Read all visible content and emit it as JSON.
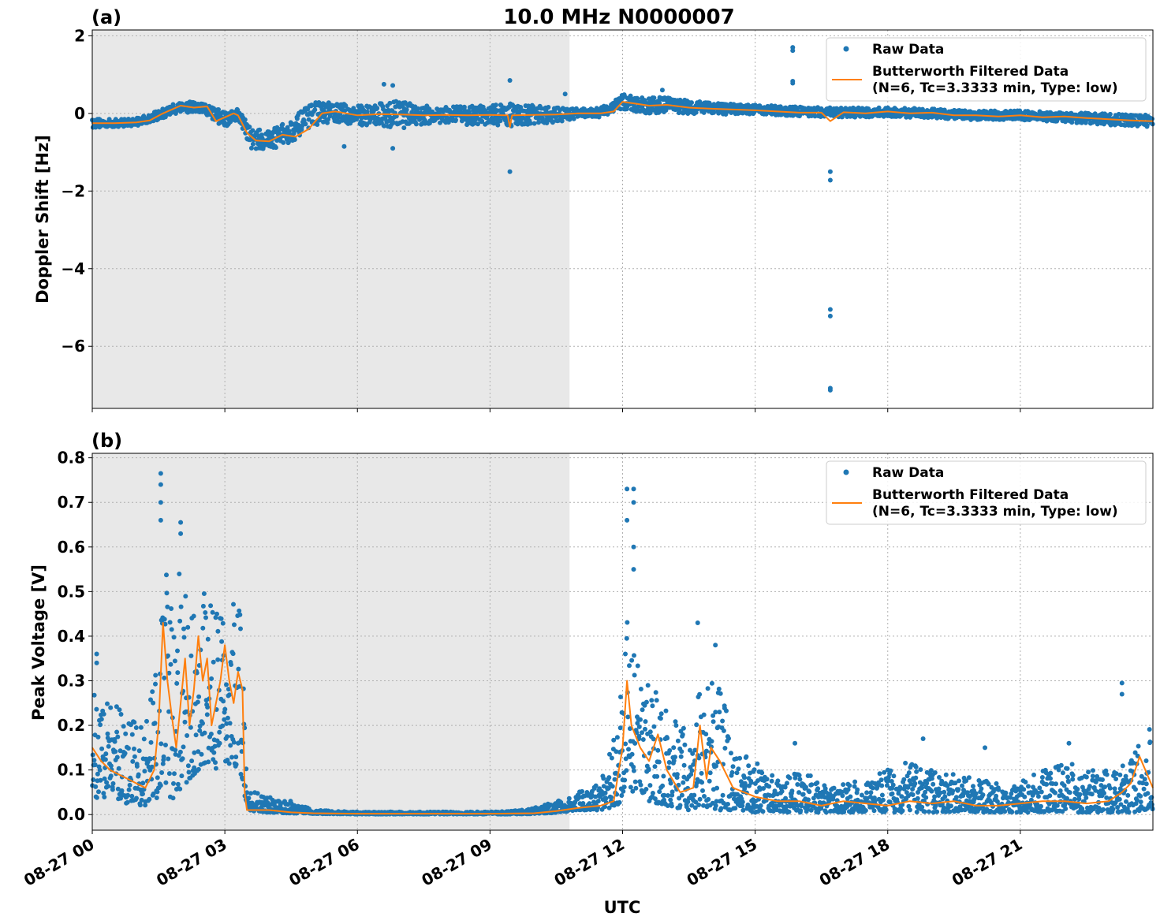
{
  "figure": {
    "title": "10.0 MHz N0000007",
    "xlabel": "UTC"
  },
  "colors": {
    "raw": "#1f77b4",
    "filtered": "#ff7f0e",
    "shade": "#e8e8e8"
  },
  "legend": {
    "raw_label": "Raw Data",
    "filtered_label_line1": "Butterworth Filtered Data",
    "filtered_label_line2": "(N=6, Tc=3.3333 min, Type: low)"
  },
  "chart_data": [
    {
      "type": "scatter",
      "panel_label": "(a)",
      "ylabel": "Doppler Shift [Hz]",
      "x_unit": "hours UTC on 08-27",
      "xlim": [
        0,
        24
      ],
      "ylim": [
        -7.6,
        2.15
      ],
      "yticks": [
        2,
        0,
        -2,
        -4,
        -6
      ],
      "ytick_labels": [
        "2",
        "0",
        "−2",
        "−4",
        "−6"
      ],
      "xticks": [
        0,
        3,
        6,
        9,
        12,
        15,
        18,
        21
      ],
      "xtick_labels": [
        "08-27 00",
        "08-27 03",
        "08-27 06",
        "08-27 09",
        "08-27 12",
        "08-27 15",
        "08-27 18",
        "08-27 21"
      ],
      "grid": true,
      "legend_position": "top-right",
      "shaded_interval": [
        0,
        10.8
      ],
      "series": [
        {
          "name": "Raw Data",
          "style": "dots",
          "band": {
            "x": [
              0,
              0.5,
              1.0,
              1.5,
              2.0,
              2.5,
              3.0,
              3.3,
              3.6,
              4.0,
              4.5,
              5.0,
              5.5,
              6.0,
              6.5,
              7.0,
              7.5,
              8.0,
              8.5,
              9.0,
              9.5,
              10.0,
              10.5,
              11.0,
              11.5,
              12.0,
              12.5,
              13.0,
              14.0,
              15.0,
              16.0,
              17.0,
              18.0,
              19.0,
              20.0,
              21.0,
              22.0,
              23.0,
              24.0
            ],
            "y": [
              -0.25,
              -0.25,
              -0.22,
              -0.05,
              0.18,
              0.12,
              -0.15,
              0.0,
              -0.65,
              -0.7,
              -0.45,
              0.0,
              0.02,
              -0.05,
              -0.02,
              -0.03,
              -0.05,
              -0.04,
              -0.05,
              -0.04,
              -0.05,
              -0.04,
              -0.03,
              0.0,
              0.02,
              0.3,
              0.2,
              0.22,
              0.12,
              0.1,
              0.05,
              0.02,
              0.03,
              0.0,
              -0.05,
              -0.05,
              -0.1,
              -0.15,
              -0.2
            ],
            "spread": [
              0.12,
              0.1,
              0.1,
              0.12,
              0.15,
              0.15,
              0.2,
              0.15,
              0.25,
              0.25,
              0.3,
              0.3,
              0.25,
              0.25,
              0.3,
              0.35,
              0.25,
              0.2,
              0.25,
              0.25,
              0.3,
              0.25,
              0.2,
              0.12,
              0.12,
              0.2,
              0.2,
              0.2,
              0.15,
              0.12,
              0.12,
              0.12,
              0.12,
              0.12,
              0.12,
              0.12,
              0.12,
              0.15,
              0.15
            ]
          },
          "outliers": [
            [
              15.85,
              1.7
            ],
            [
              15.85,
              1.62
            ],
            [
              15.85,
              0.83
            ],
            [
              15.85,
              0.78
            ],
            [
              16.7,
              -1.5
            ],
            [
              16.7,
              -1.72
            ],
            [
              16.7,
              -5.05
            ],
            [
              16.7,
              -5.22
            ],
            [
              16.7,
              -7.08
            ],
            [
              16.7,
              -7.13
            ],
            [
              9.45,
              -1.5
            ],
            [
              9.45,
              0.85
            ],
            [
              6.6,
              0.75
            ],
            [
              6.8,
              0.72
            ],
            [
              5.7,
              -0.85
            ],
            [
              6.8,
              -0.9
            ],
            [
              10.7,
              0.5
            ],
            [
              12.9,
              0.6
            ]
          ]
        },
        {
          "name": "Butterworth Filtered Data (N=6, Tc=3.3333 min, Type: low)",
          "style": "line",
          "x": [
            0,
            0.5,
            1.0,
            1.3,
            1.6,
            2.0,
            2.3,
            2.6,
            2.8,
            3.0,
            3.2,
            3.3,
            3.5,
            3.7,
            4.0,
            4.3,
            4.6,
            4.9,
            5.2,
            5.5,
            6.0,
            6.5,
            7.0,
            7.5,
            8.0,
            8.5,
            9.0,
            9.4,
            9.45,
            9.5,
            10.0,
            10.5,
            11.0,
            11.5,
            11.8,
            12.0,
            12.3,
            12.6,
            13.0,
            13.5,
            14.0,
            14.5,
            15.0,
            15.5,
            16.0,
            16.5,
            16.7,
            17.0,
            17.5,
            18.0,
            18.5,
            19.0,
            19.5,
            20.0,
            20.5,
            21.0,
            21.5,
            22.0,
            22.5,
            23.0,
            23.5,
            24.0
          ],
          "y": [
            -0.25,
            -0.25,
            -0.23,
            -0.18,
            0.0,
            0.2,
            0.15,
            0.18,
            -0.2,
            -0.1,
            0.0,
            -0.05,
            -0.5,
            -0.7,
            -0.72,
            -0.55,
            -0.6,
            -0.4,
            0.0,
            0.05,
            -0.05,
            -0.02,
            -0.03,
            -0.05,
            -0.04,
            -0.05,
            -0.04,
            -0.05,
            -0.35,
            -0.05,
            -0.04,
            -0.03,
            0.0,
            0.0,
            0.05,
            0.3,
            0.25,
            0.2,
            0.22,
            0.15,
            0.12,
            0.1,
            0.08,
            0.05,
            0.02,
            0.02,
            -0.2,
            0.03,
            0.0,
            0.05,
            0.0,
            0.02,
            -0.05,
            -0.05,
            -0.08,
            -0.05,
            -0.1,
            -0.08,
            -0.12,
            -0.15,
            -0.18,
            -0.2
          ]
        }
      ]
    },
    {
      "type": "scatter",
      "panel_label": "(b)",
      "ylabel": "Peak Voltage [V]",
      "x_unit": "hours UTC on 08-27",
      "xlim": [
        0,
        24
      ],
      "ylim": [
        -0.035,
        0.81
      ],
      "yticks": [
        0.0,
        0.1,
        0.2,
        0.3,
        0.4,
        0.5,
        0.6,
        0.7,
        0.8
      ],
      "ytick_labels": [
        "0.0",
        "0.1",
        "0.2",
        "0.3",
        "0.4",
        "0.5",
        "0.6",
        "0.7",
        "0.8"
      ],
      "xticks": [
        0,
        3,
        6,
        9,
        12,
        15,
        18,
        21
      ],
      "xtick_labels": [
        "08-27 00",
        "08-27 03",
        "08-27 06",
        "08-27 09",
        "08-27 12",
        "08-27 15",
        "08-27 18",
        "08-27 21"
      ],
      "grid": true,
      "legend_position": "top-right",
      "shaded_interval": [
        0,
        10.8
      ],
      "series": [
        {
          "name": "Raw Data",
          "style": "dots",
          "band": {
            "x": [
              0,
              0.3,
              0.6,
              0.9,
              1.2,
              1.5,
              1.6,
              1.8,
              2.0,
              2.2,
              2.4,
              2.6,
              2.8,
              3.0,
              3.2,
              3.4,
              3.5,
              3.7,
              4.0,
              4.5,
              5.0,
              6.0,
              7.0,
              8.0,
              9.0,
              9.5,
              10.0,
              10.5,
              11.0,
              11.5,
              11.9,
              12.1,
              12.3,
              12.6,
              13.0,
              13.5,
              13.8,
              14.2,
              14.6,
              15.0,
              15.5,
              16.0,
              16.5,
              17.0,
              17.5,
              18.0,
              18.5,
              19.0,
              19.5,
              20.0,
              20.5,
              21.0,
              21.5,
              22.0,
              22.5,
              23.0,
              23.5,
              24.0
            ],
            "lo": [
              0.03,
              0.04,
              0.03,
              0.02,
              0.02,
              0.04,
              0.08,
              0.03,
              0.05,
              0.08,
              0.1,
              0.12,
              0.1,
              0.12,
              0.1,
              0.08,
              0.008,
              0.008,
              0.005,
              0.003,
              0.002,
              0.001,
              0.001,
              0.001,
              0.001,
              0.001,
              0.002,
              0.004,
              0.01,
              0.01,
              0.02,
              0.05,
              0.05,
              0.03,
              0.02,
              0.01,
              0.02,
              0.01,
              0.01,
              0.005,
              0.005,
              0.005,
              0.005,
              0.005,
              0.005,
              0.005,
              0.005,
              0.005,
              0.005,
              0.005,
              0.005,
              0.005,
              0.005,
              0.005,
              0.005,
              0.005,
              0.005,
              0.01
            ],
            "hi": [
              0.3,
              0.26,
              0.25,
              0.21,
              0.2,
              0.35,
              0.6,
              0.5,
              0.55,
              0.45,
              0.55,
              0.48,
              0.5,
              0.48,
              0.5,
              0.45,
              0.05,
              0.05,
              0.04,
              0.03,
              0.01,
              0.006,
              0.006,
              0.006,
              0.006,
              0.008,
              0.015,
              0.03,
              0.05,
              0.07,
              0.2,
              0.45,
              0.35,
              0.3,
              0.25,
              0.18,
              0.3,
              0.3,
              0.15,
              0.12,
              0.08,
              0.1,
              0.08,
              0.07,
              0.08,
              0.1,
              0.12,
              0.1,
              0.09,
              0.08,
              0.07,
              0.08,
              0.1,
              0.12,
              0.1,
              0.1,
              0.12,
              0.22
            ]
          },
          "outliers": [
            [
              1.55,
              0.765
            ],
            [
              1.55,
              0.74
            ],
            [
              1.55,
              0.7
            ],
            [
              1.55,
              0.66
            ],
            [
              2.0,
              0.655
            ],
            [
              2.0,
              0.63
            ],
            [
              12.1,
              0.73
            ],
            [
              12.25,
              0.73
            ],
            [
              12.25,
              0.7
            ],
            [
              12.1,
              0.66
            ],
            [
              12.25,
              0.6
            ],
            [
              12.25,
              0.55
            ],
            [
              13.7,
              0.43
            ],
            [
              14.1,
              0.38
            ],
            [
              23.3,
              0.295
            ],
            [
              23.3,
              0.27
            ],
            [
              0.1,
              0.36
            ],
            [
              0.1,
              0.34
            ],
            [
              15.9,
              0.16
            ],
            [
              20.2,
              0.15
            ],
            [
              18.8,
              0.17
            ],
            [
              22.1,
              0.16
            ]
          ]
        },
        {
          "name": "Butterworth Filtered Data (N=6, Tc=3.3333 min, Type: low)",
          "style": "line",
          "x": [
            0,
            0.2,
            0.4,
            0.6,
            0.8,
            1.0,
            1.2,
            1.4,
            1.5,
            1.6,
            1.7,
            1.8,
            1.9,
            2.0,
            2.1,
            2.2,
            2.3,
            2.4,
            2.5,
            2.6,
            2.7,
            2.8,
            2.9,
            3.0,
            3.1,
            3.2,
            3.3,
            3.4,
            3.45,
            3.5,
            4.0,
            4.5,
            5.0,
            6.0,
            7.0,
            8.0,
            9.0,
            10.0,
            10.5,
            11.0,
            11.5,
            11.8,
            12.0,
            12.1,
            12.2,
            12.4,
            12.6,
            12.8,
            13.0,
            13.3,
            13.6,
            13.75,
            13.9,
            14.0,
            14.2,
            14.5,
            15.0,
            15.5,
            16.0,
            16.5,
            17.0,
            17.5,
            18.0,
            18.5,
            19.0,
            19.5,
            20.0,
            20.5,
            21.0,
            21.5,
            22.0,
            22.5,
            23.0,
            23.3,
            23.5,
            23.7,
            24.0
          ],
          "y": [
            0.15,
            0.12,
            0.1,
            0.09,
            0.08,
            0.07,
            0.06,
            0.1,
            0.2,
            0.43,
            0.3,
            0.22,
            0.15,
            0.25,
            0.35,
            0.2,
            0.28,
            0.4,
            0.3,
            0.35,
            0.2,
            0.25,
            0.3,
            0.38,
            0.3,
            0.25,
            0.32,
            0.28,
            0.05,
            0.01,
            0.01,
            0.005,
            0.003,
            0.002,
            0.002,
            0.002,
            0.002,
            0.003,
            0.008,
            0.015,
            0.02,
            0.03,
            0.15,
            0.3,
            0.2,
            0.15,
            0.12,
            0.18,
            0.1,
            0.05,
            0.06,
            0.2,
            0.08,
            0.15,
            0.12,
            0.06,
            0.04,
            0.03,
            0.03,
            0.02,
            0.03,
            0.025,
            0.02,
            0.03,
            0.025,
            0.03,
            0.02,
            0.02,
            0.025,
            0.03,
            0.03,
            0.025,
            0.03,
            0.05,
            0.07,
            0.13,
            0.06
          ]
        }
      ]
    }
  ]
}
